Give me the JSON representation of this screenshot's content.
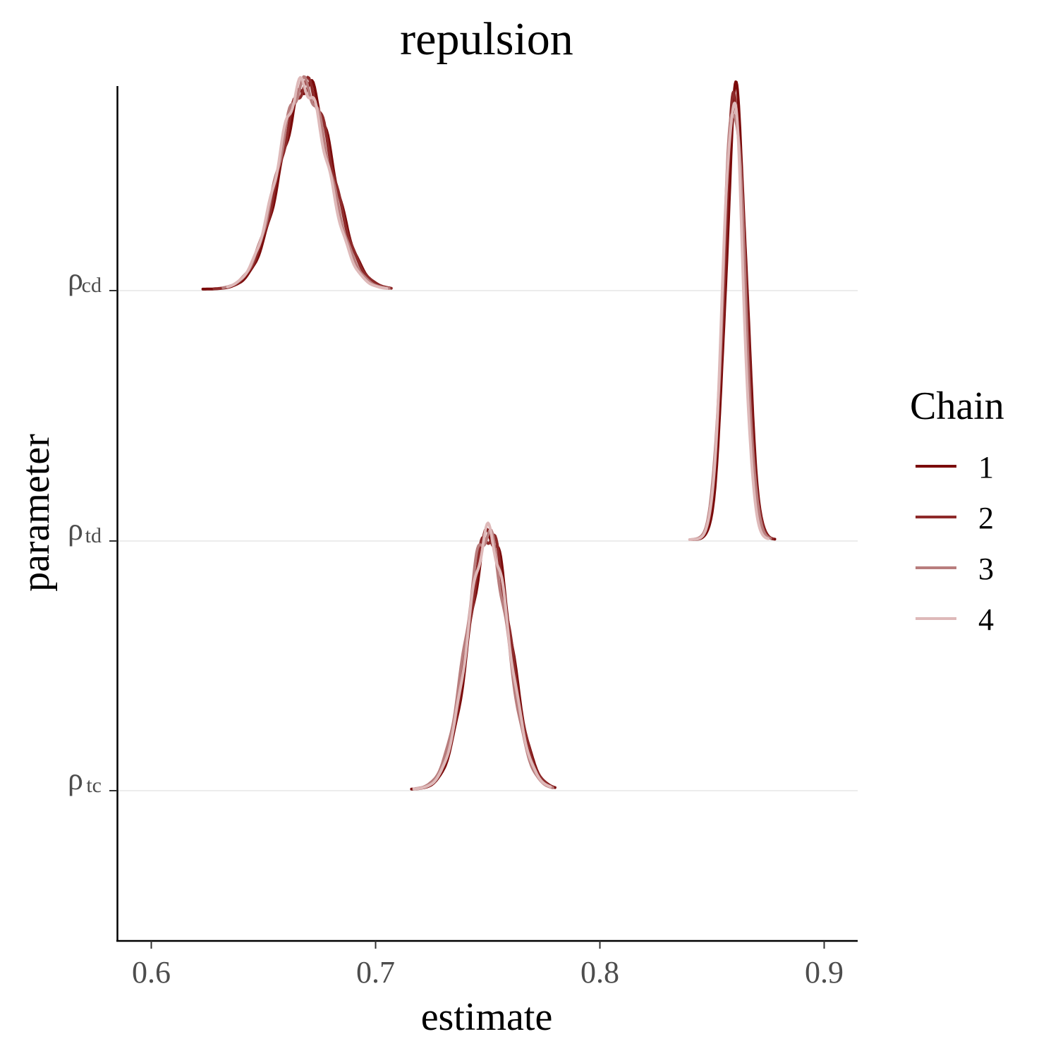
{
  "chart_data": {
    "type": "ridgeline",
    "title": "repulsion",
    "xlabel": "estimate",
    "ylabel": "parameter",
    "xlim": [
      0.585,
      0.915
    ],
    "x_ticks": [
      "0.6",
      "0.7",
      "0.8",
      "0.9"
    ],
    "x_tick_values": [
      0.6,
      0.7,
      0.8,
      0.9
    ],
    "grid": "horizontal major at parameter rows",
    "legend": {
      "title": "Chain",
      "position": "right",
      "entries": [
        "1",
        "2",
        "3",
        "4"
      ]
    },
    "parameters": [
      {
        "symbol": "ρ",
        "subscript": "tc"
      },
      {
        "symbol": "ρ",
        "subscript": "td"
      },
      {
        "symbol": "ρ",
        "subscript": "cd"
      }
    ],
    "series": [
      {
        "name": "1",
        "color": "#7b0b0b",
        "densities": [
          {
            "parameter": "tc",
            "mean": 0.751,
            "sd": 0.0092,
            "min": 0.716,
            "max": 0.78
          },
          {
            "parameter": "td",
            "mean": 0.8608,
            "sd": 0.0046,
            "min": 0.841,
            "max": 0.878
          },
          {
            "parameter": "cd",
            "mean": 0.6695,
            "sd": 0.0115,
            "min": 0.623,
            "max": 0.706
          }
        ]
      },
      {
        "name": "2",
        "color": "#8e2a2a",
        "densities": [
          {
            "parameter": "tc",
            "mean": 0.7505,
            "sd": 0.0093,
            "min": 0.717,
            "max": 0.779
          },
          {
            "parameter": "td",
            "mean": 0.8602,
            "sd": 0.0047,
            "min": 0.842,
            "max": 0.877
          },
          {
            "parameter": "cd",
            "mean": 0.669,
            "sd": 0.0116,
            "min": 0.628,
            "max": 0.707
          }
        ]
      },
      {
        "name": "3",
        "color": "#b87d7d",
        "densities": [
          {
            "parameter": "tc",
            "mean": 0.7495,
            "sd": 0.0092,
            "min": 0.718,
            "max": 0.779
          },
          {
            "parameter": "td",
            "mean": 0.8598,
            "sd": 0.0047,
            "min": 0.842,
            "max": 0.876
          },
          {
            "parameter": "cd",
            "mean": 0.668,
            "sd": 0.0114,
            "min": 0.632,
            "max": 0.706
          }
        ]
      },
      {
        "name": "4",
        "color": "#deb9b9",
        "densities": [
          {
            "parameter": "tc",
            "mean": 0.7502,
            "sd": 0.0091,
            "min": 0.717,
            "max": 0.778
          },
          {
            "parameter": "td",
            "mean": 0.8594,
            "sd": 0.0044,
            "min": 0.84,
            "max": 0.875
          },
          {
            "parameter": "cd",
            "mean": 0.6675,
            "sd": 0.0112,
            "min": 0.634,
            "max": 0.705
          }
        ]
      }
    ]
  }
}
